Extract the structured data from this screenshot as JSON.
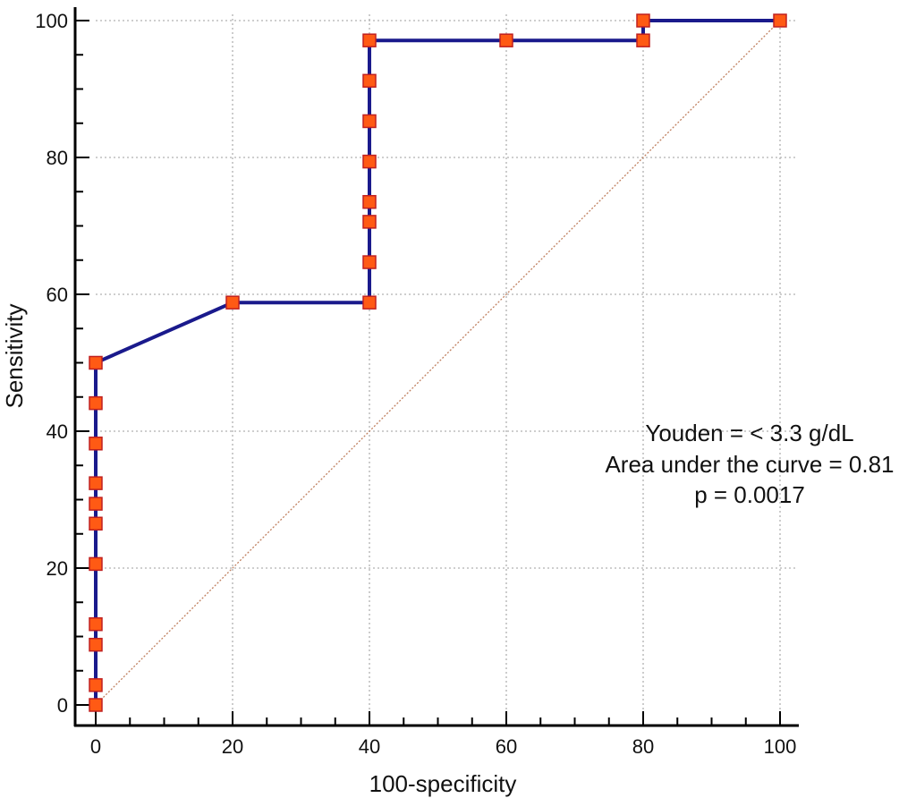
{
  "chart_data": {
    "type": "line",
    "xlabel": "100-specificity",
    "ylabel": "Sensitivity",
    "xlim": [
      0,
      100
    ],
    "ylim": [
      0,
      100
    ],
    "xticks": [
      0,
      20,
      40,
      60,
      80,
      100
    ],
    "yticks": [
      0,
      20,
      40,
      60,
      80,
      100
    ],
    "grid": true,
    "series": [
      {
        "marker": "square",
        "points": [
          {
            "x": 0,
            "y": 0
          },
          {
            "x": 0,
            "y": 2.9
          },
          {
            "x": 0,
            "y": 8.8
          },
          {
            "x": 0,
            "y": 11.8
          },
          {
            "x": 0,
            "y": 20.6
          },
          {
            "x": 0,
            "y": 26.5
          },
          {
            "x": 0,
            "y": 29.4
          },
          {
            "x": 0,
            "y": 32.4
          },
          {
            "x": 0,
            "y": 38.2
          },
          {
            "x": 0,
            "y": 44.1
          },
          {
            "x": 0,
            "y": 50
          },
          {
            "x": 20,
            "y": 58.8
          },
          {
            "x": 40,
            "y": 58.8
          },
          {
            "x": 40,
            "y": 64.7
          },
          {
            "x": 40,
            "y": 70.6
          },
          {
            "x": 40,
            "y": 73.5
          },
          {
            "x": 40,
            "y": 79.4
          },
          {
            "x": 40,
            "y": 85.3
          },
          {
            "x": 40,
            "y": 91.2
          },
          {
            "x": 40,
            "y": 97.1
          },
          {
            "x": 60,
            "y": 97.1
          },
          {
            "x": 80,
            "y": 97.1
          },
          {
            "x": 80,
            "y": 100
          },
          {
            "x": 100,
            "y": 100
          }
        ]
      }
    ],
    "reference_line": {
      "from": [
        0,
        0
      ],
      "to": [
        100,
        100
      ],
      "style": "dotted"
    },
    "annotations": [
      "Youden = < 3.3 g/dL",
      "Area under the curve = 0.81",
      "p = 0.0017"
    ],
    "colors": {
      "curve": "#1a1a8c",
      "marker_fill": "#ff5a14",
      "marker_edge": "#c02020",
      "reference": "#c08060",
      "grid": "#b0b0b0",
      "axis": "#000000"
    }
  }
}
